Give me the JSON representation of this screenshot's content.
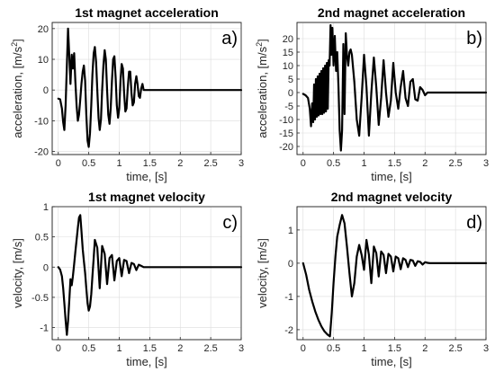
{
  "chart_data": [
    {
      "type": "line",
      "title": "1st magnet acceleration",
      "panel_label": "a)",
      "xlabel": "time, [s]",
      "ylabel": "acceleration, [m/s",
      "ylabel_superscript": "2",
      "ylabel_close": "]",
      "xlim": [
        -0.1,
        3
      ],
      "ylim": [
        -21,
        22
      ],
      "xticks": [
        0,
        0.5,
        1,
        1.5,
        2,
        2.5,
        3
      ],
      "xtick_labels": [
        "0",
        "0.5",
        "1",
        "1.5",
        "2",
        "2.5",
        "3"
      ],
      "yticks": [
        -20,
        -10,
        0,
        10,
        20
      ],
      "ytick_labels": [
        "-20",
        "-10",
        "0",
        "10",
        "20"
      ],
      "grid": true,
      "series": [
        {
          "color": "#000000",
          "x": [
            0.0,
            0.03,
            0.06,
            0.08,
            0.1,
            0.12,
            0.14,
            0.16,
            0.18,
            0.2,
            0.22,
            0.24,
            0.26,
            0.28,
            0.3,
            0.32,
            0.34,
            0.36,
            0.38,
            0.4,
            0.42,
            0.44,
            0.46,
            0.48,
            0.5,
            0.52,
            0.54,
            0.56,
            0.58,
            0.6,
            0.62,
            0.64,
            0.66,
            0.68,
            0.7,
            0.72,
            0.74,
            0.76,
            0.78,
            0.8,
            0.82,
            0.84,
            0.86,
            0.88,
            0.9,
            0.92,
            0.94,
            0.96,
            0.98,
            1.0,
            1.02,
            1.04,
            1.06,
            1.08,
            1.1,
            1.12,
            1.14,
            1.16,
            1.18,
            1.2,
            1.22,
            1.24,
            1.26,
            1.28,
            1.3,
            1.32,
            1.34,
            1.36,
            1.38,
            1.4,
            1.5,
            3.0
          ],
          "y": [
            -2.8,
            -3.0,
            -6.0,
            -10.5,
            -13.0,
            -5.0,
            8.0,
            20.0,
            11.0,
            2.0,
            11.5,
            7.0,
            12.0,
            3.0,
            -5.0,
            -10.0,
            -8.0,
            -3.0,
            2.0,
            6.0,
            8.0,
            3.0,
            -8.0,
            -16.5,
            -18.5,
            -14.0,
            -5.0,
            5.0,
            12.0,
            14.0,
            9.0,
            0.0,
            -9.0,
            -13.0,
            -9.5,
            0.0,
            8.0,
            13.0,
            10.0,
            0.0,
            -8.0,
            -11.0,
            -6.0,
            3.0,
            10.0,
            11.0,
            4.0,
            -5.0,
            -9.0,
            -6.0,
            3.0,
            8.5,
            7.0,
            -1.0,
            -7.0,
            -6.0,
            1.0,
            6.0,
            6.0,
            -1.0,
            -5.0,
            -4.0,
            2.0,
            4.5,
            2.0,
            -2.0,
            -2.5,
            0.5,
            2.0,
            0.0,
            0.0,
            0.0
          ]
        }
      ]
    },
    {
      "type": "line",
      "title": "2nd magnet acceleration",
      "panel_label": "b)",
      "xlabel": "time, [s]",
      "ylabel": "acceleration, [m/s",
      "ylabel_superscript": "2",
      "ylabel_close": "]",
      "xlim": [
        -0.1,
        3
      ],
      "ylim": [
        -23,
        26
      ],
      "xticks": [
        0,
        0.5,
        1,
        1.5,
        2,
        2.5,
        3
      ],
      "xtick_labels": [
        "0",
        "0.5",
        "1",
        "1.5",
        "2",
        "2.5",
        "3"
      ],
      "yticks": [
        -20,
        -15,
        -10,
        -5,
        0,
        5,
        10,
        15,
        20
      ],
      "ytick_labels": [
        "-20",
        "-15",
        "-10",
        "-5",
        "0",
        "5",
        "10",
        "15",
        "20"
      ],
      "grid": true,
      "series": [
        {
          "color": "#000000",
          "x": [
            0.0,
            0.04,
            0.08,
            0.11,
            0.13,
            0.15,
            0.165,
            0.18,
            0.195,
            0.21,
            0.225,
            0.24,
            0.255,
            0.27,
            0.285,
            0.3,
            0.315,
            0.33,
            0.345,
            0.36,
            0.375,
            0.39,
            0.405,
            0.42,
            0.435,
            0.45,
            0.465,
            0.48,
            0.5,
            0.52,
            0.54,
            0.56,
            0.58,
            0.6,
            0.62,
            0.64,
            0.66,
            0.68,
            0.7,
            0.72,
            0.74,
            0.76,
            0.78,
            0.8,
            0.84,
            0.88,
            0.92,
            0.96,
            1.0,
            1.04,
            1.08,
            1.12,
            1.16,
            1.2,
            1.24,
            1.28,
            1.32,
            1.36,
            1.4,
            1.44,
            1.48,
            1.52,
            1.56,
            1.6,
            1.64,
            1.68,
            1.72,
            1.76,
            1.8,
            1.84,
            1.88,
            1.92,
            1.96,
            2.0,
            2.04,
            2.08,
            3.0
          ],
          "y": [
            -0.5,
            -1.0,
            -2.0,
            -6.0,
            -12.5,
            -4.0,
            -11.0,
            3.0,
            -10.0,
            5.0,
            -9.0,
            6.0,
            -8.5,
            7.0,
            -8.0,
            8.0,
            -8.0,
            9.0,
            -7.5,
            10.0,
            -7.0,
            11.0,
            -6.0,
            12.0,
            10.0,
            25.0,
            14.0,
            24.0,
            10.0,
            21.0,
            8.0,
            15.0,
            2.0,
            -14.0,
            -21.5,
            -14.0,
            18.0,
            -8.0,
            22.0,
            14.0,
            10.0,
            15.0,
            16.0,
            14.0,
            4.0,
            -10.0,
            -16.0,
            -2.0,
            14.0,
            2.0,
            -16.0,
            0.0,
            13.0,
            2.0,
            -12.0,
            -2.0,
            12.0,
            0.0,
            -9.0,
            -3.0,
            11.0,
            0.0,
            -6.0,
            2.0,
            8.0,
            -2.0,
            -5.0,
            4.0,
            5.0,
            -2.5,
            -3.0,
            2.0,
            1.0,
            -1.0,
            0.0,
            0.0,
            0.0
          ]
        }
      ]
    },
    {
      "type": "line",
      "title": "1st magnet velocity",
      "panel_label": "c)",
      "xlabel": "time, [s]",
      "ylabel": "velocity, [m/s]",
      "xlim": [
        -0.1,
        3
      ],
      "ylim": [
        -1.2,
        1.0
      ],
      "xticks": [
        0,
        0.5,
        1,
        1.5,
        2,
        2.5,
        3
      ],
      "xtick_labels": [
        "0",
        "0.5",
        "1",
        "1.5",
        "2",
        "2.5",
        "3"
      ],
      "yticks": [
        -1,
        -0.5,
        0,
        0.5,
        1
      ],
      "ytick_labels": [
        "-1",
        "-0.5",
        "0",
        "0.5",
        "1"
      ],
      "grid": true,
      "series": [
        {
          "color": "#000000",
          "x": [
            0.0,
            0.03,
            0.06,
            0.08,
            0.1,
            0.12,
            0.14,
            0.16,
            0.18,
            0.2,
            0.22,
            0.24,
            0.26,
            0.28,
            0.3,
            0.32,
            0.34,
            0.36,
            0.38,
            0.4,
            0.42,
            0.44,
            0.46,
            0.48,
            0.5,
            0.52,
            0.54,
            0.56,
            0.58,
            0.6,
            0.64,
            0.68,
            0.72,
            0.76,
            0.8,
            0.84,
            0.88,
            0.92,
            0.96,
            1.0,
            1.04,
            1.08,
            1.12,
            1.16,
            1.2,
            1.24,
            1.28,
            1.32,
            1.36,
            1.4,
            3.0
          ],
          "y": [
            0.0,
            -0.04,
            -0.15,
            -0.35,
            -0.6,
            -0.88,
            -1.12,
            -0.9,
            -0.55,
            -0.2,
            -0.3,
            -0.15,
            0.05,
            0.25,
            0.45,
            0.65,
            0.82,
            0.86,
            0.6,
            0.3,
            0.1,
            -0.1,
            -0.35,
            -0.6,
            -0.72,
            -0.65,
            -0.45,
            -0.15,
            0.15,
            0.45,
            0.32,
            -0.35,
            0.35,
            0.22,
            -0.28,
            0.15,
            0.2,
            -0.22,
            0.1,
            0.15,
            -0.15,
            0.12,
            0.1,
            -0.1,
            0.07,
            0.05,
            -0.05,
            0.04,
            0.02,
            0.0,
            0.0
          ]
        }
      ]
    },
    {
      "type": "line",
      "title": "2nd magnet velocity",
      "panel_label": "d)",
      "xlabel": "time, [s]",
      "ylabel": "velocity, [m/s]",
      "xlim": [
        -0.1,
        3
      ],
      "ylim": [
        -2.3,
        1.7
      ],
      "xticks": [
        0,
        0.5,
        1,
        1.5,
        2,
        2.5,
        3
      ],
      "xtick_labels": [
        "0",
        "0.5",
        "1",
        "1.5",
        "2",
        "2.5",
        "3"
      ],
      "yticks": [
        -2,
        -1,
        0,
        1
      ],
      "ytick_labels": [
        "-2",
        "-1",
        "0",
        "1"
      ],
      "grid": true,
      "series": [
        {
          "color": "#000000",
          "x": [
            0.0,
            0.05,
            0.1,
            0.15,
            0.2,
            0.25,
            0.3,
            0.35,
            0.4,
            0.44,
            0.47,
            0.5,
            0.53,
            0.56,
            0.6,
            0.64,
            0.68,
            0.72,
            0.76,
            0.8,
            0.84,
            0.88,
            0.92,
            0.96,
            1.0,
            1.04,
            1.08,
            1.12,
            1.16,
            1.2,
            1.24,
            1.28,
            1.32,
            1.36,
            1.4,
            1.44,
            1.48,
            1.52,
            1.56,
            1.6,
            1.64,
            1.68,
            1.72,
            1.76,
            1.8,
            1.84,
            1.88,
            1.92,
            1.96,
            2.0,
            2.04,
            2.08,
            3.0
          ],
          "y": [
            0.0,
            -0.35,
            -0.8,
            -1.15,
            -1.45,
            -1.7,
            -1.9,
            -2.05,
            -2.15,
            -2.2,
            -1.5,
            -0.6,
            0.2,
            0.8,
            1.15,
            1.45,
            1.2,
            0.5,
            -0.3,
            -1.0,
            -0.6,
            0.2,
            0.55,
            0.25,
            -0.2,
            0.7,
            0.25,
            -0.6,
            0.5,
            0.3,
            -0.4,
            0.35,
            0.25,
            -0.3,
            0.28,
            0.2,
            -0.25,
            0.2,
            0.15,
            -0.18,
            0.15,
            0.1,
            -0.12,
            0.1,
            0.08,
            -0.08,
            0.06,
            0.04,
            -0.04,
            0.03,
            0.01,
            0.0,
            0.0
          ]
        }
      ]
    }
  ]
}
